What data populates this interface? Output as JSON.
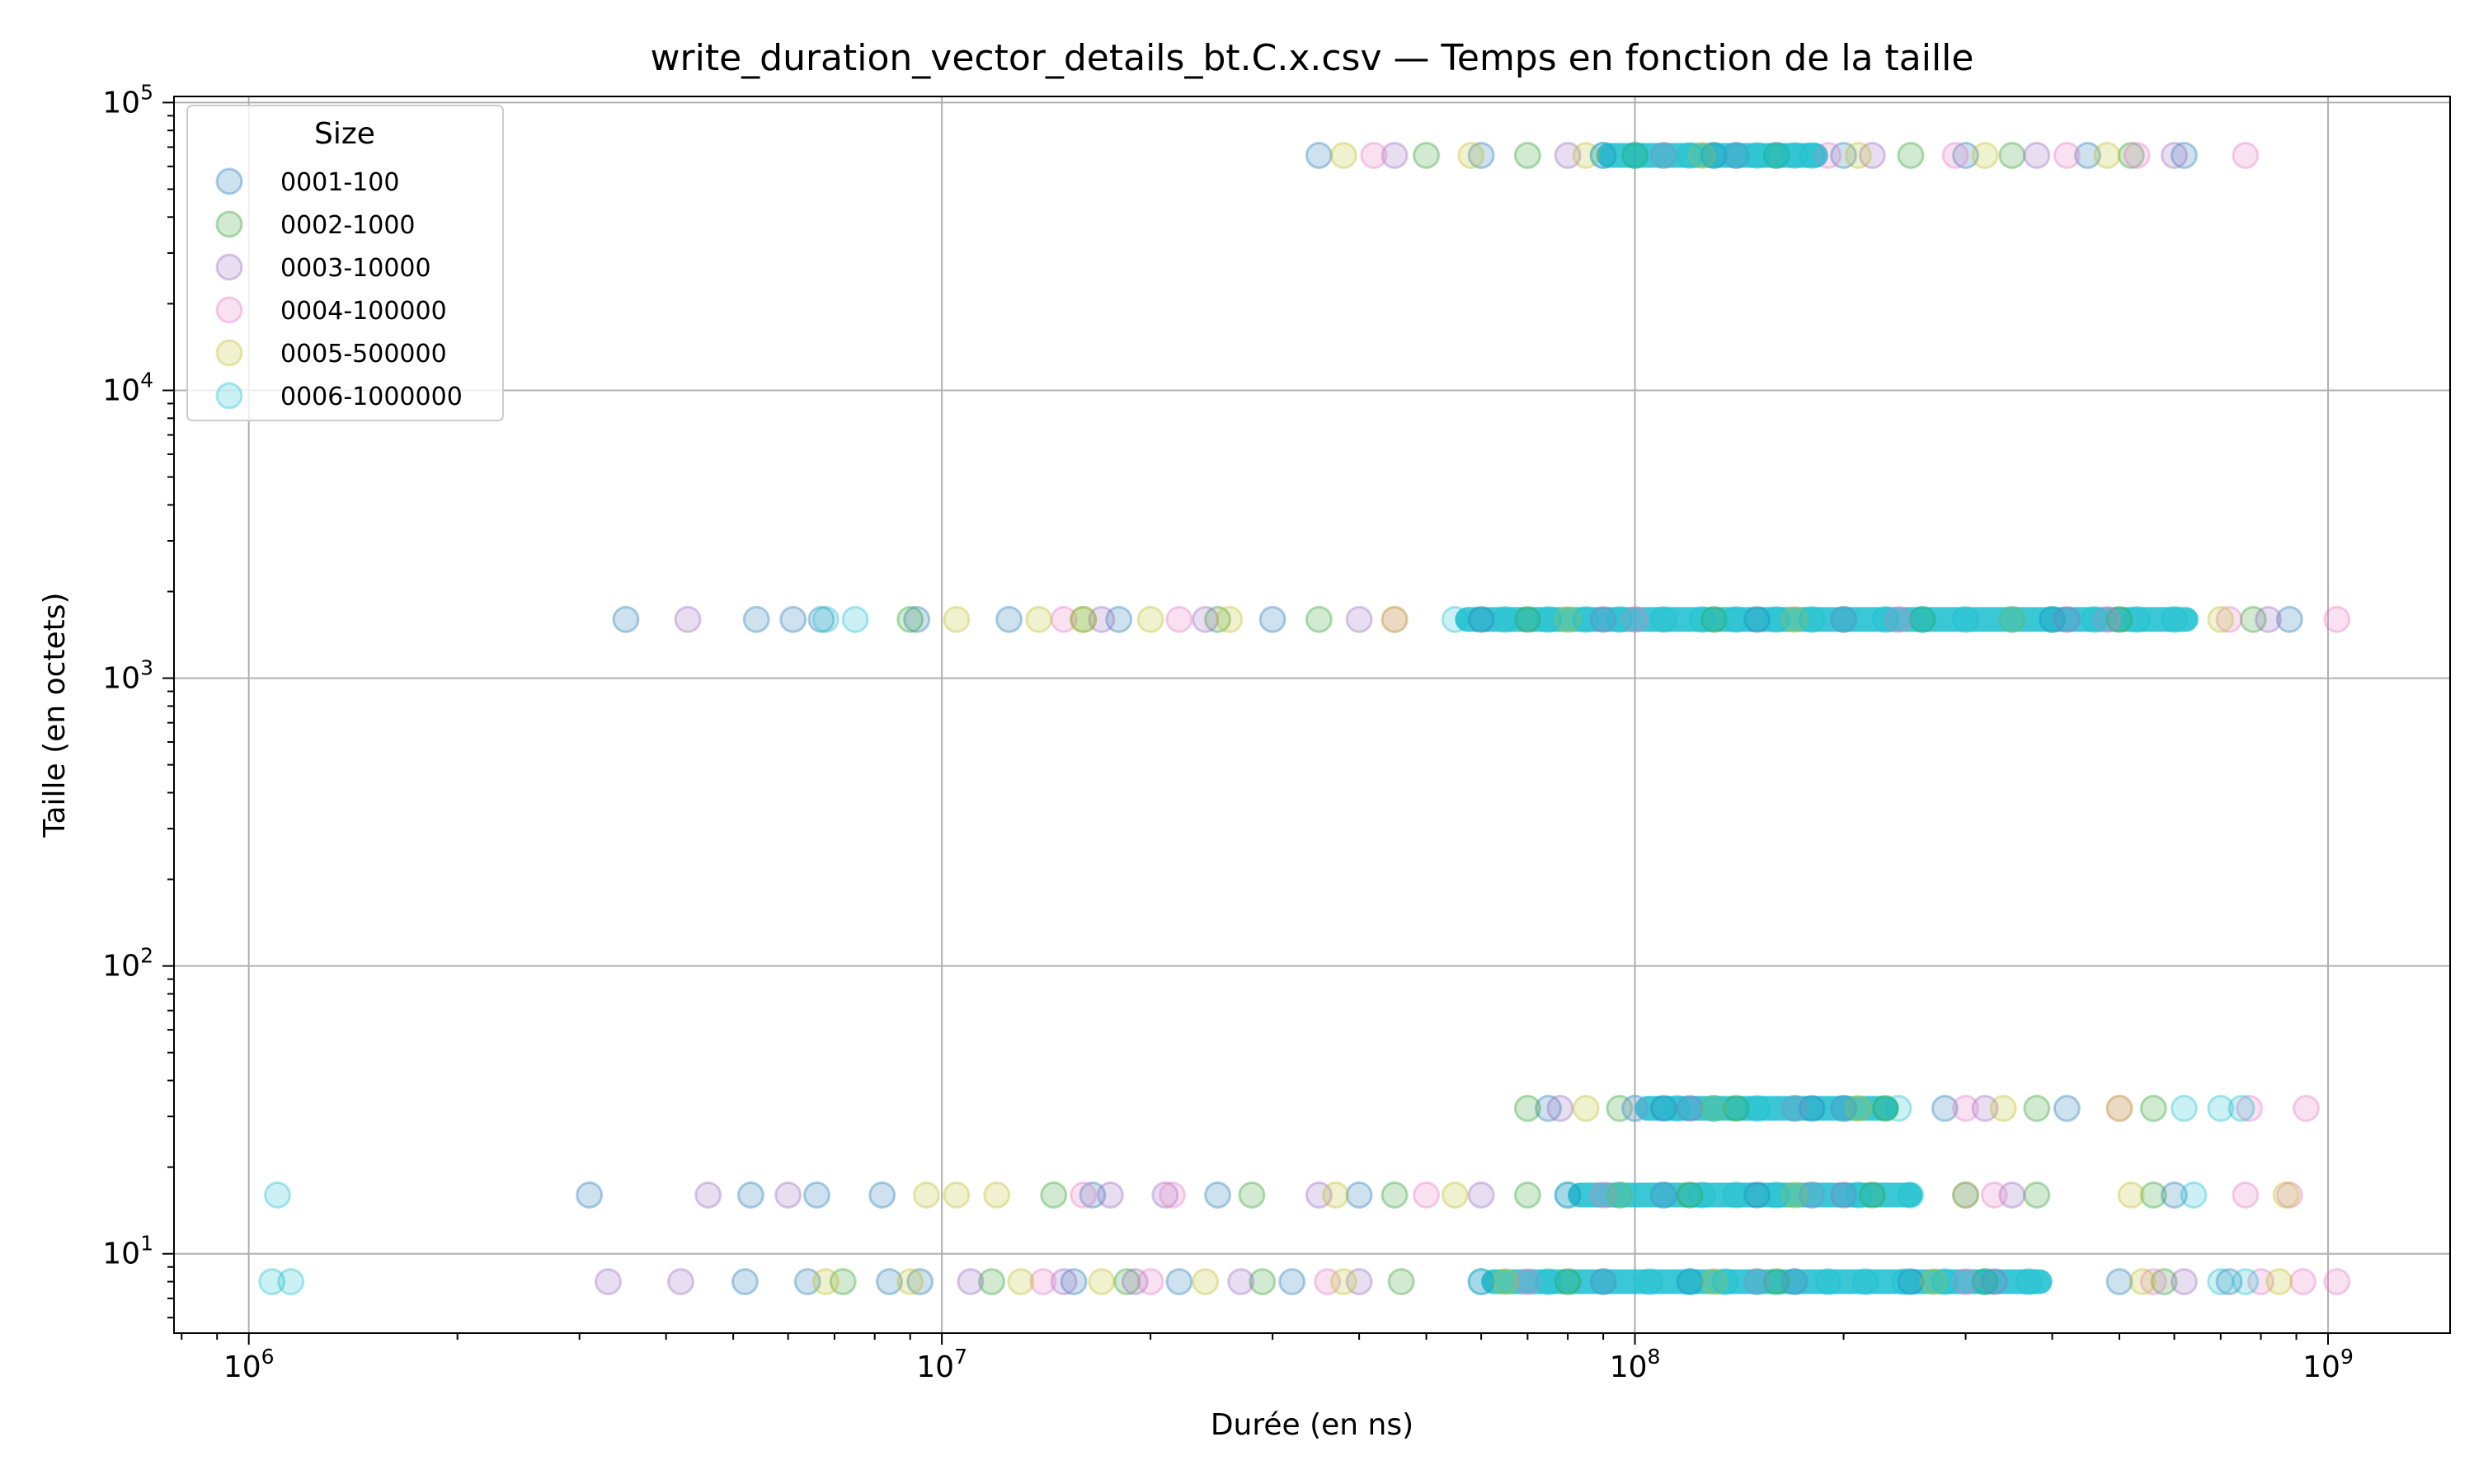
{
  "chart_data": {
    "type": "scatter",
    "title": "write_duration_vector_details_bt.C.x.csv — Temps en fonction de la taille",
    "xlabel": "Durée (en ns)",
    "ylabel": "Taille (en octets)",
    "xscale": "log",
    "yscale": "log",
    "xlim": [
      780000,
      1500000000
    ],
    "ylim": [
      5.3,
      105000
    ],
    "grid": true,
    "legend": {
      "title": "Size",
      "position": "top-left"
    },
    "x_ticks": [
      {
        "value": 1000000,
        "base": "10",
        "exp": "6"
      },
      {
        "value": 10000000,
        "base": "10",
        "exp": "7"
      },
      {
        "value": 100000000,
        "base": "10",
        "exp": "8"
      },
      {
        "value": 1000000000,
        "base": "10",
        "exp": "9"
      }
    ],
    "y_ticks": [
      {
        "value": 10,
        "base": "10",
        "exp": "1"
      },
      {
        "value": 100,
        "base": "10",
        "exp": "2"
      },
      {
        "value": 1000,
        "base": "10",
        "exp": "3"
      },
      {
        "value": 10000,
        "base": "10",
        "exp": "4"
      },
      {
        "value": 100000,
        "base": "10",
        "exp": "5"
      }
    ],
    "series": [
      {
        "name": "0001-100",
        "color": "#1f77b4",
        "points": [
          [
            35000000,
            65536
          ],
          [
            60000000,
            65536
          ],
          [
            90000000,
            65536
          ],
          [
            130000000,
            65536
          ],
          [
            200000000,
            65536
          ],
          [
            300000000,
            65536
          ],
          [
            450000000,
            65536
          ],
          [
            620000000,
            65536
          ],
          [
            3500000,
            1600
          ],
          [
            5400000,
            1600
          ],
          [
            6100000,
            1600
          ],
          [
            6700000,
            1600
          ],
          [
            9200000,
            1600
          ],
          [
            12500000,
            1600
          ],
          [
            18000000,
            1600
          ],
          [
            30000000,
            1600
          ],
          [
            60000000,
            1600
          ],
          [
            150000000,
            1600
          ],
          [
            400000000,
            1600
          ],
          [
            880000000,
            1600
          ],
          [
            75000000,
            32
          ],
          [
            110000000,
            32
          ],
          [
            180000000,
            32
          ],
          [
            280000000,
            32
          ],
          [
            420000000,
            32
          ],
          [
            3100000,
            16
          ],
          [
            5300000,
            16
          ],
          [
            6600000,
            16
          ],
          [
            8200000,
            16
          ],
          [
            16500000,
            16
          ],
          [
            25000000,
            16
          ],
          [
            40000000,
            16
          ],
          [
            80000000,
            16
          ],
          [
            150000000,
            16
          ],
          [
            300000000,
            16
          ],
          [
            600000000,
            16
          ],
          [
            5200000,
            8
          ],
          [
            6400000,
            8
          ],
          [
            8400000,
            8
          ],
          [
            9300000,
            8
          ],
          [
            15500000,
            8
          ],
          [
            22000000,
            8
          ],
          [
            32000000,
            8
          ],
          [
            60000000,
            8
          ],
          [
            120000000,
            8
          ],
          [
            250000000,
            8
          ],
          [
            500000000,
            8
          ],
          [
            720000000,
            8
          ]
        ]
      },
      {
        "name": "0002-1000",
        "color": "#2ca02c",
        "points": [
          [
            50000000,
            65536
          ],
          [
            70000000,
            65536
          ],
          [
            100000000,
            65536
          ],
          [
            160000000,
            65536
          ],
          [
            250000000,
            65536
          ],
          [
            350000000,
            65536
          ],
          [
            520000000,
            65536
          ],
          [
            9000000,
            1600
          ],
          [
            16000000,
            1600
          ],
          [
            25000000,
            1600
          ],
          [
            35000000,
            1600
          ],
          [
            70000000,
            1600
          ],
          [
            130000000,
            1600
          ],
          [
            260000000,
            1600
          ],
          [
            500000000,
            1600
          ],
          [
            780000000,
            1600
          ],
          [
            70000000,
            32
          ],
          [
            95000000,
            32
          ],
          [
            140000000,
            32
          ],
          [
            230000000,
            32
          ],
          [
            380000000,
            32
          ],
          [
            560000000,
            32
          ],
          [
            14500000,
            16
          ],
          [
            28000000,
            16
          ],
          [
            45000000,
            16
          ],
          [
            70000000,
            16
          ],
          [
            120000000,
            16
          ],
          [
            220000000,
            16
          ],
          [
            380000000,
            16
          ],
          [
            560000000,
            16
          ],
          [
            7200000,
            8
          ],
          [
            11800000,
            8
          ],
          [
            18500000,
            8
          ],
          [
            29000000,
            8
          ],
          [
            46000000,
            8
          ],
          [
            80000000,
            8
          ],
          [
            160000000,
            8
          ],
          [
            320000000,
            8
          ],
          [
            580000000,
            8
          ]
        ]
      },
      {
        "name": "0003-10000",
        "color": "#9467bd",
        "points": [
          [
            45000000,
            65536
          ],
          [
            80000000,
            65536
          ],
          [
            140000000,
            65536
          ],
          [
            220000000,
            65536
          ],
          [
            380000000,
            65536
          ],
          [
            600000000,
            65536
          ],
          [
            4300000,
            1600
          ],
          [
            17000000,
            1600
          ],
          [
            24000000,
            1600
          ],
          [
            40000000,
            1600
          ],
          [
            90000000,
            1600
          ],
          [
            200000000,
            1600
          ],
          [
            420000000,
            1600
          ],
          [
            820000000,
            1600
          ],
          [
            78000000,
            32
          ],
          [
            120000000,
            32
          ],
          [
            200000000,
            32
          ],
          [
            320000000,
            32
          ],
          [
            4600000,
            16
          ],
          [
            6000000,
            16
          ],
          [
            17500000,
            16
          ],
          [
            21000000,
            16
          ],
          [
            35000000,
            16
          ],
          [
            60000000,
            16
          ],
          [
            110000000,
            16
          ],
          [
            200000000,
            16
          ],
          [
            350000000,
            16
          ],
          [
            3300000,
            8
          ],
          [
            4200000,
            8
          ],
          [
            11000000,
            8
          ],
          [
            15000000,
            8
          ],
          [
            19000000,
            8
          ],
          [
            27000000,
            8
          ],
          [
            40000000,
            8
          ],
          [
            90000000,
            8
          ],
          [
            170000000,
            8
          ],
          [
            330000000,
            8
          ],
          [
            620000000,
            8
          ]
        ]
      },
      {
        "name": "0004-100000",
        "color": "#e377c2",
        "points": [
          [
            42000000,
            65536
          ],
          [
            110000000,
            65536
          ],
          [
            190000000,
            65536
          ],
          [
            290000000,
            65536
          ],
          [
            420000000,
            65536
          ],
          [
            530000000,
            65536
          ],
          [
            760000000,
            65536
          ],
          [
            15000000,
            1600
          ],
          [
            22000000,
            1600
          ],
          [
            45000000,
            1600
          ],
          [
            100000000,
            1600
          ],
          [
            240000000,
            1600
          ],
          [
            480000000,
            1600
          ],
          [
            720000000,
            1600
          ],
          [
            1030000000,
            1600
          ],
          [
            100000000,
            32
          ],
          [
            170000000,
            32
          ],
          [
            300000000,
            32
          ],
          [
            500000000,
            32
          ],
          [
            770000000,
            32
          ],
          [
            930000000,
            32
          ],
          [
            16000000,
            16
          ],
          [
            21500000,
            16
          ],
          [
            50000000,
            16
          ],
          [
            90000000,
            16
          ],
          [
            180000000,
            16
          ],
          [
            330000000,
            16
          ],
          [
            760000000,
            16
          ],
          [
            880000000,
            16
          ],
          [
            14000000,
            8
          ],
          [
            20000000,
            8
          ],
          [
            36000000,
            8
          ],
          [
            70000000,
            8
          ],
          [
            150000000,
            8
          ],
          [
            300000000,
            8
          ],
          [
            560000000,
            8
          ],
          [
            800000000,
            8
          ],
          [
            920000000,
            8
          ],
          [
            1030000000,
            8
          ]
        ]
      },
      {
        "name": "0005-500000",
        "color": "#bcbd22",
        "points": [
          [
            38000000,
            65536
          ],
          [
            58000000,
            65536
          ],
          [
            85000000,
            65536
          ],
          [
            125000000,
            65536
          ],
          [
            210000000,
            65536
          ],
          [
            320000000,
            65536
          ],
          [
            480000000,
            65536
          ],
          [
            10500000,
            1600
          ],
          [
            13800000,
            1600
          ],
          [
            16000000,
            1600
          ],
          [
            20000000,
            1600
          ],
          [
            26000000,
            1600
          ],
          [
            45000000,
            1600
          ],
          [
            80000000,
            1600
          ],
          [
            170000000,
            1600
          ],
          [
            350000000,
            1600
          ],
          [
            700000000,
            1600
          ],
          [
            85000000,
            32
          ],
          [
            130000000,
            32
          ],
          [
            210000000,
            32
          ],
          [
            340000000,
            32
          ],
          [
            500000000,
            32
          ],
          [
            9500000,
            16
          ],
          [
            10500000,
            16
          ],
          [
            12000000,
            16
          ],
          [
            37000000,
            16
          ],
          [
            55000000,
            16
          ],
          [
            95000000,
            16
          ],
          [
            170000000,
            16
          ],
          [
            300000000,
            16
          ],
          [
            520000000,
            16
          ],
          [
            870000000,
            16
          ],
          [
            6800000,
            8
          ],
          [
            9000000,
            8
          ],
          [
            13000000,
            8
          ],
          [
            17000000,
            8
          ],
          [
            24000000,
            8
          ],
          [
            38000000,
            8
          ],
          [
            65000000,
            8
          ],
          [
            130000000,
            8
          ],
          [
            270000000,
            8
          ],
          [
            540000000,
            8
          ],
          [
            850000000,
            8
          ]
        ]
      },
      {
        "name": "0006-1000000",
        "color": "#17becf",
        "points": [
          [
            90000000,
            65536
          ],
          [
            100000000,
            65536
          ],
          [
            110000000,
            65536
          ],
          [
            120000000,
            65536
          ],
          [
            130000000,
            65536
          ],
          [
            140000000,
            65536
          ],
          [
            150000000,
            65536
          ],
          [
            160000000,
            65536
          ],
          [
            170000000,
            65536
          ],
          [
            180000000,
            65536
          ],
          [
            6800000,
            1600
          ],
          [
            7500000,
            1600
          ],
          [
            55000000,
            1600
          ],
          [
            65000000,
            1600
          ],
          [
            75000000,
            1600
          ],
          [
            85000000,
            1600
          ],
          [
            95000000,
            1600
          ],
          [
            110000000,
            1600
          ],
          [
            125000000,
            1600
          ],
          [
            140000000,
            1600
          ],
          [
            160000000,
            1600
          ],
          [
            180000000,
            1600
          ],
          [
            200000000,
            1600
          ],
          [
            230000000,
            1600
          ],
          [
            260000000,
            1600
          ],
          [
            300000000,
            1600
          ],
          [
            350000000,
            1600
          ],
          [
            400000000,
            1600
          ],
          [
            460000000,
            1600
          ],
          [
            530000000,
            1600
          ],
          [
            600000000,
            1600
          ],
          [
            100000000,
            32
          ],
          [
            115000000,
            32
          ],
          [
            130000000,
            32
          ],
          [
            150000000,
            32
          ],
          [
            170000000,
            32
          ],
          [
            200000000,
            32
          ],
          [
            240000000,
            32
          ],
          [
            620000000,
            32
          ],
          [
            700000000,
            32
          ],
          [
            750000000,
            32
          ],
          [
            1100000,
            16
          ],
          [
            80000000,
            16
          ],
          [
            95000000,
            16
          ],
          [
            110000000,
            16
          ],
          [
            125000000,
            16
          ],
          [
            140000000,
            16
          ],
          [
            160000000,
            16
          ],
          [
            180000000,
            16
          ],
          [
            210000000,
            16
          ],
          [
            250000000,
            16
          ],
          [
            640000000,
            16
          ],
          [
            1080000,
            8
          ],
          [
            1150000,
            8
          ],
          [
            60000000,
            8
          ],
          [
            75000000,
            8
          ],
          [
            90000000,
            8
          ],
          [
            105000000,
            8
          ],
          [
            120000000,
            8
          ],
          [
            135000000,
            8
          ],
          [
            150000000,
            8
          ],
          [
            170000000,
            8
          ],
          [
            190000000,
            8
          ],
          [
            215000000,
            8
          ],
          [
            245000000,
            8
          ],
          [
            280000000,
            8
          ],
          [
            320000000,
            8
          ],
          [
            370000000,
            8
          ],
          [
            700000000,
            8
          ],
          [
            760000000,
            8
          ]
        ]
      }
    ],
    "bands": [
      {
        "series": "0006-1000000",
        "y": 65536,
        "x0": 88000000,
        "x1": 190000000
      },
      {
        "series": "0006-1000000",
        "y": 1600,
        "x0": 55000000,
        "x1": 650000000
      },
      {
        "series": "0006-1000000",
        "y": 32,
        "x0": 100000000,
        "x1": 240000000
      },
      {
        "series": "0006-1000000",
        "y": 16,
        "x0": 80000000,
        "x1": 260000000
      },
      {
        "series": "0006-1000000",
        "y": 8,
        "x0": 60000000,
        "x1": 400000000
      }
    ]
  }
}
